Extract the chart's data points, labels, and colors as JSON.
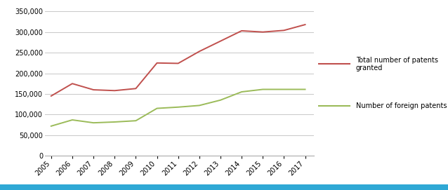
{
  "years": [
    2005,
    2006,
    2007,
    2008,
    2009,
    2010,
    2011,
    2012,
    2013,
    2014,
    2015,
    2016,
    2017
  ],
  "total_patents": [
    145000,
    175000,
    160000,
    158000,
    163000,
    225000,
    224000,
    253000,
    278000,
    303000,
    300000,
    304000,
    318000
  ],
  "foreign_patents": [
    72000,
    87000,
    80000,
    82000,
    85000,
    115000,
    118000,
    122000,
    135000,
    155000,
    161000,
    161000,
    161000
  ],
  "total_color": "#c0504d",
  "foreign_color": "#9bbb59",
  "total_label": "Total number of patents granted",
  "foreign_label": "Number of foreign patents granted",
  "ylim": [
    0,
    350000
  ],
  "yticks": [
    0,
    50000,
    100000,
    150000,
    200000,
    250000,
    300000,
    350000
  ],
  "background_color": "#ffffff",
  "grid_color": "#c8c8c8",
  "legend_fontsize": 7,
  "tick_fontsize": 7,
  "blue_bar_color": "#2fa8d5"
}
